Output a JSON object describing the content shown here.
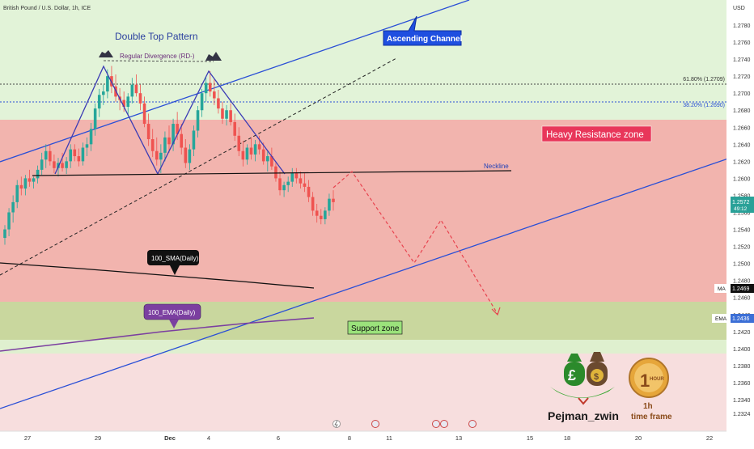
{
  "symbol_title": "British Pound / U.S. Dollar, 1h, ICE",
  "currency": "USD",
  "watermark": {
    "name": "Pejman_zwin",
    "badge_top": "1h",
    "badge_bottom": "time frame",
    "hour_text": "HOUR",
    "hour_num": "1"
  },
  "chart_data": {
    "type": "candlestick",
    "instrument": "British Pound / U.S. Dollar",
    "timeframe": "1h",
    "y_axis": {
      "unit": "USD",
      "ticks": [
        "1.2780",
        "1.2760",
        "1.2740",
        "1.2720",
        "1.2700",
        "1.2680",
        "1.2660",
        "1.2640",
        "1.2620",
        "1.2600",
        "1.2580",
        "1.2560",
        "1.2540",
        "1.2520",
        "1.2500",
        "1.2480",
        "1.2460",
        "1.2440",
        "1.2420",
        "1.2400",
        "1.2380",
        "1.2360",
        "1.2340",
        "1.2324"
      ]
    },
    "x_axis": {
      "ticks": [
        "27",
        "29",
        "Dec",
        "4",
        "6",
        "8",
        "11",
        "13",
        "15",
        "18",
        "20",
        "22"
      ],
      "bold": [
        "Dec"
      ]
    },
    "candles_ohlc": [
      [
        1.253,
        1.2545,
        1.2522,
        1.254
      ],
      [
        1.254,
        1.2565,
        1.2532,
        1.256
      ],
      [
        1.256,
        1.258,
        1.2548,
        1.2572
      ],
      [
        1.2572,
        1.2598,
        1.2565,
        1.2592
      ],
      [
        1.2592,
        1.2602,
        1.258,
        1.2588
      ],
      [
        1.2588,
        1.2604,
        1.258,
        1.26
      ],
      [
        1.26,
        1.261,
        1.259,
        1.2596
      ],
      [
        1.2596,
        1.2602,
        1.2588,
        1.26
      ],
      [
        1.26,
        1.2615,
        1.2594,
        1.261
      ],
      [
        1.261,
        1.263,
        1.2604,
        1.2622
      ],
      [
        1.2622,
        1.264,
        1.2612,
        1.2632
      ],
      [
        1.2632,
        1.264,
        1.2615,
        1.262
      ],
      [
        1.262,
        1.2628,
        1.2606,
        1.2612
      ],
      [
        1.2612,
        1.2624,
        1.2602,
        1.2618
      ],
      [
        1.2618,
        1.263,
        1.2608,
        1.2612
      ],
      [
        1.2612,
        1.2625,
        1.2605,
        1.262
      ],
      [
        1.262,
        1.264,
        1.2612,
        1.2634
      ],
      [
        1.2634,
        1.264,
        1.262,
        1.2626
      ],
      [
        1.2626,
        1.2635,
        1.2614,
        1.262
      ],
      [
        1.262,
        1.2642,
        1.2615,
        1.2636
      ],
      [
        1.2636,
        1.2648,
        1.2626,
        1.264
      ],
      [
        1.264,
        1.2665,
        1.2632,
        1.2658
      ],
      [
        1.2658,
        1.2688,
        1.265,
        1.2682
      ],
      [
        1.2682,
        1.2705,
        1.2672,
        1.2698
      ],
      [
        1.2698,
        1.271,
        1.2686,
        1.2702
      ],
      [
        1.2702,
        1.2728,
        1.2694,
        1.272
      ],
      [
        1.272,
        1.2732,
        1.27,
        1.2708
      ],
      [
        1.2708,
        1.2722,
        1.269,
        1.2696
      ],
      [
        1.2696,
        1.2706,
        1.268,
        1.2692
      ],
      [
        1.2692,
        1.2702,
        1.2678,
        1.2684
      ],
      [
        1.2684,
        1.27,
        1.2674,
        1.2696
      ],
      [
        1.2696,
        1.2718,
        1.2688,
        1.271
      ],
      [
        1.271,
        1.2722,
        1.2696,
        1.27
      ],
      [
        1.27,
        1.271,
        1.268,
        1.2688
      ],
      [
        1.2688,
        1.2696,
        1.266,
        1.2664
      ],
      [
        1.2664,
        1.2676,
        1.2638,
        1.2646
      ],
      [
        1.2646,
        1.2658,
        1.2625,
        1.2632
      ],
      [
        1.2632,
        1.2648,
        1.2615,
        1.2622
      ],
      [
        1.2622,
        1.264,
        1.2606,
        1.263
      ],
      [
        1.263,
        1.2655,
        1.262,
        1.2648
      ],
      [
        1.2648,
        1.2662,
        1.263,
        1.264
      ],
      [
        1.264,
        1.267,
        1.2632,
        1.2664
      ],
      [
        1.2664,
        1.2678,
        1.2645,
        1.2652
      ],
      [
        1.2652,
        1.2664,
        1.2628,
        1.2636
      ],
      [
        1.2636,
        1.2646,
        1.2612,
        1.2618
      ],
      [
        1.2618,
        1.264,
        1.261,
        1.2634
      ],
      [
        1.2634,
        1.2662,
        1.2626,
        1.2656
      ],
      [
        1.2656,
        1.2685,
        1.2648,
        1.268
      ],
      [
        1.268,
        1.2705,
        1.2672,
        1.27
      ],
      [
        1.27,
        1.272,
        1.269,
        1.2712
      ],
      [
        1.2712,
        1.2726,
        1.2696,
        1.2702
      ],
      [
        1.2702,
        1.2716,
        1.2686,
        1.2694
      ],
      [
        1.2694,
        1.2704,
        1.2676,
        1.2682
      ],
      [
        1.2682,
        1.269,
        1.2664,
        1.267
      ],
      [
        1.267,
        1.2686,
        1.2662,
        1.268
      ],
      [
        1.268,
        1.2688,
        1.2662,
        1.2666
      ],
      [
        1.2666,
        1.2676,
        1.2644,
        1.265
      ],
      [
        1.265,
        1.266,
        1.2626,
        1.2632
      ],
      [
        1.2632,
        1.2644,
        1.2614,
        1.2622
      ],
      [
        1.2622,
        1.264,
        1.2616,
        1.2636
      ],
      [
        1.2636,
        1.2648,
        1.2622,
        1.2628
      ],
      [
        1.2628,
        1.2645,
        1.262,
        1.264
      ],
      [
        1.264,
        1.265,
        1.2628,
        1.2634
      ],
      [
        1.2634,
        1.2642,
        1.2616,
        1.262
      ],
      [
        1.262,
        1.2632,
        1.2608,
        1.2626
      ],
      [
        1.2626,
        1.2636,
        1.261,
        1.2614
      ],
      [
        1.2614,
        1.262,
        1.2596,
        1.26
      ],
      [
        1.26,
        1.2608,
        1.258,
        1.2586
      ],
      [
        1.2586,
        1.2596,
        1.2578,
        1.2592
      ],
      [
        1.2592,
        1.2602,
        1.2584,
        1.2596
      ],
      [
        1.2596,
        1.2612,
        1.259,
        1.2606
      ],
      [
        1.2606,
        1.2612,
        1.2594,
        1.26
      ],
      [
        1.26,
        1.2608,
        1.2588,
        1.2594
      ],
      [
        1.2594,
        1.2606,
        1.2584,
        1.259
      ],
      [
        1.259,
        1.2598,
        1.2572,
        1.2578
      ],
      [
        1.2578,
        1.2584,
        1.2556,
        1.2562
      ],
      [
        1.2562,
        1.257,
        1.2548,
        1.2556
      ],
      [
        1.2556,
        1.2564,
        1.2546,
        1.2552
      ],
      [
        1.2552,
        1.2566,
        1.2546,
        1.2562
      ],
      [
        1.2562,
        1.2582,
        1.2556,
        1.2576
      ],
      [
        1.2576,
        1.2586,
        1.2562,
        1.2572
      ]
    ],
    "price_levels": [
      {
        "label": "61.80% (1.2709)",
        "value": 1.2709
      },
      {
        "label": "38.20% (1.2690)",
        "value": 1.269
      }
    ],
    "zones": [
      {
        "name": "Heavy Resistance zone",
        "from": 1.2458,
        "to": 1.2668,
        "color": "#f28b8b"
      },
      {
        "name": "Support zone",
        "from": 1.2412,
        "to": 1.2458,
        "color": "#b7d69a"
      }
    ],
    "indicators": [
      {
        "name": "100_SMA(Daily)",
        "axis_tag": "MA",
        "value": "1.2469",
        "color": "#111111"
      },
      {
        "name": "100_EMA(Daily)",
        "axis_tag": "EMA",
        "value": "1.2436",
        "color": "#7b3fa0"
      }
    ],
    "last_price": {
      "value": "1.2572",
      "countdown": "49:12"
    },
    "annotations": [
      "Double Top Pattern",
      "Regular Divergence (RD-)",
      "Ascending Channel",
      "Neckline",
      "Heavy Resistance zone",
      "Support zone",
      "100_SMA(Daily)",
      "100_EMA(Daily)"
    ]
  },
  "colors": {
    "up": "#26a69a",
    "down": "#ef5350",
    "channel": "#2a4fd6",
    "projection": "#e8434f",
    "zone_label_bg": "#e8365a",
    "support_label_bg": "#9be27b",
    "last_price_bg": "#2aa198",
    "ma_tag_bg": "#111111",
    "ema_tag_bg": "#3c6fd6"
  }
}
